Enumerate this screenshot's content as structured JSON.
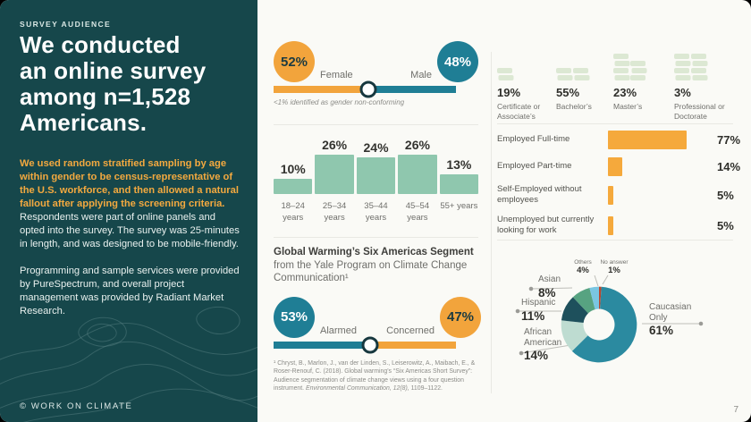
{
  "slide": {
    "page_number": "7",
    "logo": "© WORK ON CLIMATE"
  },
  "sidebar": {
    "eyebrow": "SURVEY AUDIENCE",
    "title": "We conducted\nan online survey\namong n=1,528\nAmericans.",
    "para1_highlight": "We used random stratified sampling by age within gender to be census-representative of the U.S. workforce, and then allowed a natural fallout after applying the screening criteria.",
    "para1_rest": " Respondents were part of online panels and opted into the survey. The survey was 25-minutes in length, and was designed to be mobile-friendly.",
    "para2": "Programming and sample services were provided by PureSpectrum, and overall project management was provided by Radiant Market Research."
  },
  "colors": {
    "sidebar_bg": "#16474B",
    "accent_orange": "#F2A43C",
    "accent_teal": "#1F7E95",
    "age_green": "#8FC7AE",
    "book_green": "#DCE8D3",
    "background": "#FAFAF6"
  },
  "chart_data": [
    {
      "id": "gender",
      "type": "split-bar",
      "series": [
        {
          "name": "Female",
          "value": 52,
          "color": "#F2A43C"
        },
        {
          "name": "Male",
          "value": 48,
          "color": "#1F7E95"
        }
      ],
      "note": "<1% identified as gender non-conforming"
    },
    {
      "id": "age",
      "type": "bar",
      "categories": [
        "18–24 years",
        "25–34 years",
        "35–44 years",
        "45–54 years",
        "55+ years"
      ],
      "values": [
        10,
        26,
        24,
        26,
        13
      ],
      "bar_color": "#8FC7AE"
    },
    {
      "id": "six_americas",
      "type": "split-bar",
      "title": "Global Warming’s Six Americas Segment",
      "subtitle": "from the Yale Program on Climate Change Communication¹",
      "series": [
        {
          "name": "Alarmed",
          "value": 53,
          "color": "#1F7E95"
        },
        {
          "name": "Concerned",
          "value": 47,
          "color": "#F2A43C"
        }
      ],
      "footnote_pre": "¹ Chryst, B., Marlon, J., van der Linden, S., Leiserowitz, A., Maibach, E., & Roser-Renouf, C. (2018). Global warming’s “Six Americas Short Survey”: Audience segmentation of climate change views using a four question instrument. ",
      "footnote_italic": "Environmental Communication, 12(8),",
      "footnote_post": " 1109–1122."
    },
    {
      "id": "education",
      "type": "pictogram",
      "icon": "book-stack-icon",
      "icon_color": "#DCE8D3",
      "items": [
        {
          "label": "Certificate or Associate’s",
          "value": 19,
          "stacks": [
            2
          ]
        },
        {
          "label": "Bachelor’s",
          "value": 55,
          "stacks": [
            2,
            2
          ]
        },
        {
          "label": "Master’s",
          "value": 23,
          "stacks": [
            4,
            3
          ]
        },
        {
          "label": "Professional or Doctorate",
          "value": 3,
          "stacks": [
            4,
            4
          ]
        }
      ]
    },
    {
      "id": "employment",
      "type": "hbar",
      "bar_color": "#F5A93C",
      "xlim": [
        0,
        100
      ],
      "rows": [
        {
          "label": "Employed Full-time",
          "value": 77
        },
        {
          "label": "Employed Part-time",
          "value": 14
        },
        {
          "label": "Self-Employed without employees",
          "value": 5
        },
        {
          "label": "Unemployed but currently looking for work",
          "value": 5
        }
      ]
    },
    {
      "id": "ethnicity",
      "type": "donut",
      "start_angle_deg": 0,
      "clockwise": true,
      "segments": [
        {
          "label": "No answer",
          "value": 1,
          "color": "#B9472F"
        },
        {
          "label": "Caucasian Only",
          "value": 61,
          "color": "#2B8AA0"
        },
        {
          "label": "African American",
          "value": 14,
          "color": "#BEDCD1"
        },
        {
          "label": "Hispanic",
          "value": 11,
          "color": "#1E505C"
        },
        {
          "label": "Asian",
          "value": 8,
          "color": "#57A381"
        },
        {
          "label": "Others",
          "value": 4,
          "color": "#7AC6E2"
        }
      ]
    }
  ]
}
